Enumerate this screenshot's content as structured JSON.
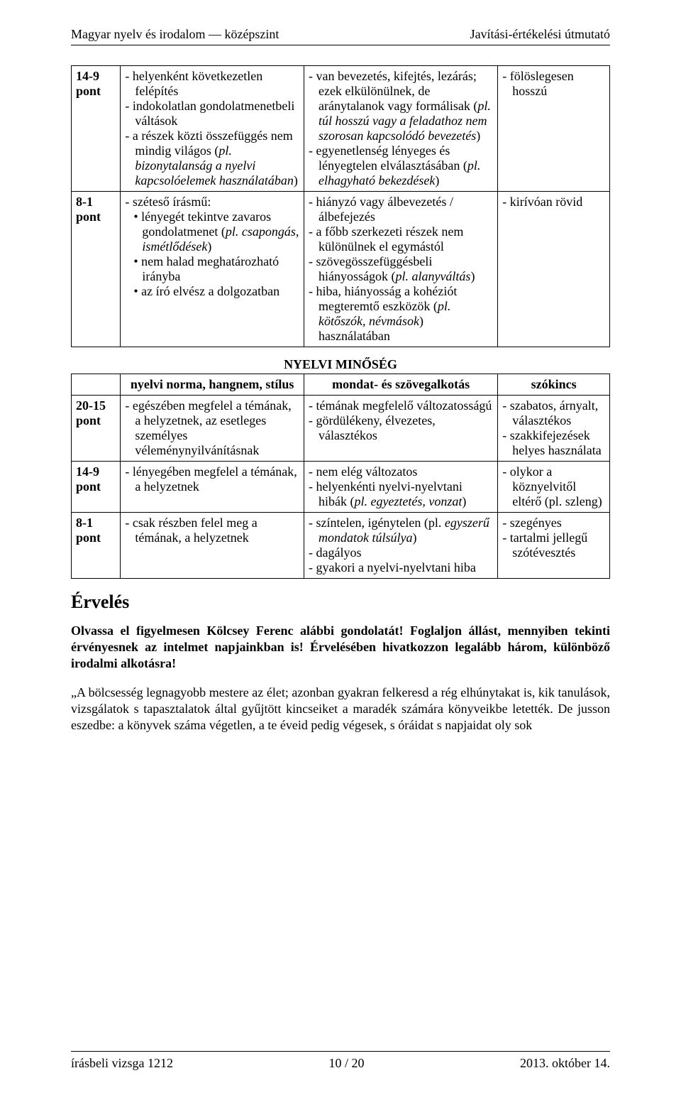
{
  "header": {
    "left": "Magyar nyelv és irodalom — középszint",
    "right": "Javítási-értékelési útmutató"
  },
  "table1": {
    "rows": [
      {
        "label": "14-9\npont",
        "c1_html": "<p class='hang'>- helyenként következetlen felépítés</p><p class='hang'>- indokolatlan gondolatmenetbeli váltások</p><p class='hang'>- a részek közti összefüggés nem mindig világos (<span class='italic'>pl. bizonytalanság a nyelvi kapcsolóelemek használatában</span>)</p>",
        "c2_html": "<p class='hang'>- van bevezetés, kifejtés, lezárás; ezek elkülönülnek, de aránytalanok vagy formálisak (<span class='italic'>pl. túl hosszú vagy a feladathoz nem szorosan kapcsolódó bevezetés</span>)</p><p class='hang'>- egyenetlenség lényeges és lényegtelen elválasztásában (<span class='italic'>pl. elhagyható bekezdések</span>)</p>",
        "c3_html": "<p class='hang'>- fölöslegesen hosszú</p>"
      },
      {
        "label": "8-1\npont",
        "c1_html": "<p class='hang'>- széteső írásmű:</p><p class='bul'>• lényegét tekintve zavaros gondolatmenet (<span class='italic'>pl. csapongás, ismétlődések</span>)</p><p class='bul'>• nem halad meghatározható irányba</p><p class='bul'>• az író elvész a dolgozatban</p>",
        "c2_html": "<p class='hang'>- hiányzó vagy álbevezetés / álbefejezés</p><p class='hang'>- a főbb szerkezeti részek nem különülnek el egymástól</p><p class='hang'>- szövegösszefüggésbeli hiányosságok (<span class='italic'>pl. alanyváltás</span>)</p><p class='hang'>- hiba, hiányosság a kohéziót megteremtő eszközök (<span class='italic'>pl. kötőszók, névmások</span>) használatában</p>",
        "c3_html": "<p class='hang'>- kirívóan rövid</p>"
      }
    ]
  },
  "section2_title": "NYELVI MINŐSÉG",
  "table2": {
    "head": [
      "",
      "nyelvi norma, hangnem, stílus",
      "mondat- és szövegalkotás",
      "szókincs"
    ],
    "rows": [
      {
        "label": "20-15\npont",
        "c1_html": "<p class='hang'>- egészében megfelel a témának, a helyzetnek, az esetleges személyes véleménynyilvánításnak</p>",
        "c2_html": "<p class='hang'>- témának megfelelő változatosságú</p><p class='hang'>- gördülékeny, élvezetes, választékos</p>",
        "c3_html": "<p class='hang'>- szabatos, árnyalt, választékos</p><p class='hang'>- szakkifejezések helyes használata</p>"
      },
      {
        "label": "14-9\npont",
        "c1_html": "<p class='hang'>- lényegében megfelel a témának, a helyzetnek</p>",
        "c2_html": "<p class='hang'>- nem elég változatos</p><p class='hang'>- helyenkénti nyelvi-nyelvtani hibák (<span class='italic'>pl. egyeztetés, vonzat</span>)</p>",
        "c3_html": "<p class='hang'>- olykor a köznyelvitől eltérő (pl. szleng)</p>"
      },
      {
        "label": "8-1\npont",
        "c1_html": "<p class='hang'>- csak részben felel meg a témának, a helyzetnek</p>",
        "c2_html": "<p class='hang'>- színtelen, igénytelen (pl. <span class='italic'>egyszerű mondatok túlsúlya</span>)</p><p class='hang'>- dagályos</p><p class='hang'>- gyakori a nyelvi-nyelvtani hiba</p>",
        "c3_html": "<p class='hang'>- szegényes</p><p class='hang'>- tartalmi jellegű szótévesztés</p>"
      }
    ]
  },
  "erveles_heading": "Érvelés",
  "task_text": "Olvassa el figyelmesen Kölcsey Ferenc alábbi gondolatát! Foglaljon állást, mennyiben tekinti érvényesnek az intelmet napjainkban is! Érvelésében hivatkozzon legalább három, különböző irodalmi alkotásra!",
  "quote_text": "„A bölcsesség legnagyobb mestere az élet; azonban gyakran felkeresd a rég elhúnytakat is, kik tanulások, vizsgálatok s tapasztalatok által gyűjtött kincseiket a maradék számára könyveikbe letették. De jusson eszedbe: a könyvek száma végetlen, a te éveid pedig végesek, s óráidat s napjaidat oly sok",
  "footer": {
    "left": "írásbeli vizsga 1212",
    "center": "10 / 20",
    "right": "2013. október 14."
  }
}
